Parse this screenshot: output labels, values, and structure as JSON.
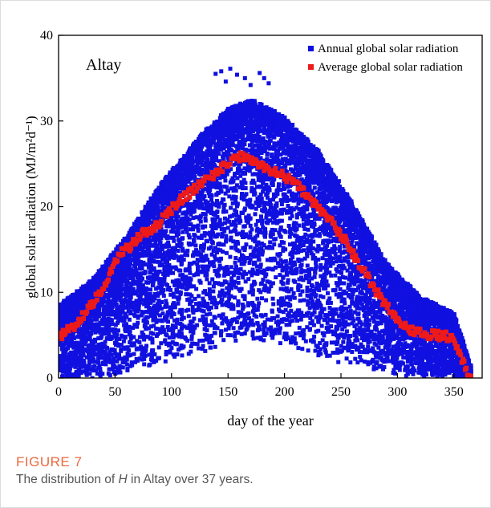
{
  "caption": {
    "label": "FIGURE 7",
    "text_before": "The distribution of ",
    "text_italic": "H",
    "text_after": " in Altay over 37 years."
  },
  "chart_data": {
    "type": "scatter",
    "title": "Altay",
    "xlabel": "day of the year",
    "ylabel": "global solar radiation  (MJ/m²d⁻¹)",
    "xlim": [
      0,
      375
    ],
    "ylim": [
      0,
      40
    ],
    "xticks": [
      0,
      50,
      100,
      150,
      200,
      250,
      300,
      350
    ],
    "yticks": [
      0,
      10,
      20,
      30,
      40
    ],
    "legend_position": "top-right",
    "grid": false,
    "series": [
      {
        "name": "Annual global solar radiation",
        "color": "#1010e0",
        "marker": "square",
        "envelope": {
          "day": [
            1,
            30,
            60,
            90,
            120,
            150,
            172,
            200,
            230,
            260,
            290,
            320,
            350,
            365
          ],
          "upper": [
            8,
            11,
            16,
            22,
            27,
            31,
            32,
            30,
            26,
            20,
            13,
            9,
            7,
            1
          ],
          "lower": [
            0,
            0,
            1,
            2,
            3,
            4,
            5,
            4,
            3,
            2,
            1,
            0,
            0,
            0
          ]
        },
        "outliers": [
          [
            139,
            35.5
          ],
          [
            144,
            35.8
          ],
          [
            152,
            36.1
          ],
          [
            158,
            35.4
          ],
          [
            165,
            35.0
          ],
          [
            178,
            35.6
          ],
          [
            182,
            35.0
          ],
          [
            186,
            34.4
          ],
          [
            170,
            34.2
          ],
          [
            148,
            34.6
          ]
        ]
      },
      {
        "name": "Average global solar radiation",
        "color": "#ee1a1a",
        "marker": "square",
        "points": [
          [
            1,
            5.0
          ],
          [
            5,
            5.2
          ],
          [
            10,
            5.8
          ],
          [
            15,
            6.2
          ],
          [
            20,
            7.0
          ],
          [
            25,
            7.8
          ],
          [
            30,
            8.7
          ],
          [
            35,
            9.8
          ],
          [
            40,
            10.9
          ],
          [
            45,
            12.1
          ],
          [
            50,
            13.4
          ],
          [
            55,
            14.6
          ],
          [
            60,
            15.0
          ],
          [
            65,
            15.6
          ],
          [
            70,
            16.4
          ],
          [
            75,
            16.9
          ],
          [
            80,
            17.2
          ],
          [
            85,
            17.6
          ],
          [
            90,
            18.3
          ],
          [
            95,
            18.8
          ],
          [
            100,
            19.7
          ],
          [
            105,
            20.4
          ],
          [
            110,
            21.0
          ],
          [
            115,
            21.5
          ],
          [
            120,
            22.0
          ],
          [
            125,
            22.7
          ],
          [
            130,
            23.2
          ],
          [
            135,
            23.5
          ],
          [
            140,
            24.0
          ],
          [
            145,
            24.5
          ],
          [
            150,
            25.1
          ],
          [
            155,
            25.5
          ],
          [
            160,
            25.8
          ],
          [
            165,
            25.9
          ],
          [
            170,
            25.6
          ],
          [
            175,
            25.2
          ],
          [
            180,
            24.8
          ],
          [
            185,
            24.5
          ],
          [
            190,
            24.2
          ],
          [
            195,
            24.0
          ],
          [
            200,
            23.6
          ],
          [
            205,
            23.1
          ],
          [
            210,
            22.6
          ],
          [
            215,
            22.0
          ],
          [
            220,
            21.4
          ],
          [
            225,
            20.6
          ],
          [
            230,
            19.9
          ],
          [
            235,
            19.2
          ],
          [
            240,
            18.4
          ],
          [
            245,
            17.6
          ],
          [
            250,
            16.7
          ],
          [
            255,
            15.8
          ],
          [
            260,
            14.7
          ],
          [
            265,
            13.6
          ],
          [
            270,
            12.5
          ],
          [
            275,
            11.4
          ],
          [
            280,
            10.4
          ],
          [
            285,
            9.4
          ],
          [
            290,
            8.5
          ],
          [
            295,
            7.6
          ],
          [
            300,
            6.9
          ],
          [
            305,
            6.3
          ],
          [
            310,
            5.8
          ],
          [
            315,
            5.4
          ],
          [
            320,
            5.2
          ],
          [
            325,
            5.1
          ],
          [
            330,
            5.0
          ],
          [
            335,
            5.0
          ],
          [
            340,
            4.9
          ],
          [
            345,
            4.8
          ],
          [
            350,
            4.6
          ],
          [
            355,
            3.0
          ],
          [
            360,
            1.2
          ],
          [
            365,
            0.2
          ]
        ]
      }
    ]
  }
}
